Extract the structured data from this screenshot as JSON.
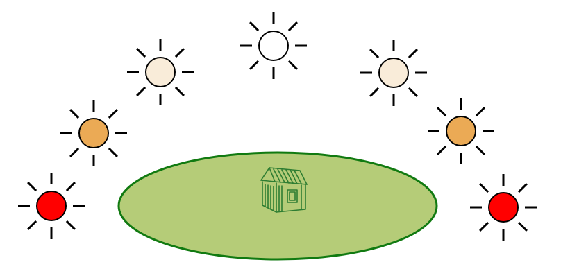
{
  "scene": {
    "ground_icon": "ellipse-ground",
    "house_icon": "house-icon",
    "sun_icon": "sun-icon",
    "colors": {
      "ground_fill": "#b5cc78",
      "ground_stroke": "#117a11",
      "house_stroke": "#2e7d32",
      "ray": "#000000",
      "sun_outline": "#000000"
    },
    "suns": [
      {
        "id": "sun-left-1",
        "color": "#ff0000"
      },
      {
        "id": "sun-left-2",
        "color": "#ebaa55"
      },
      {
        "id": "sun-left-3",
        "color": "#f9ecd9"
      },
      {
        "id": "sun-top",
        "color": "#ffffff"
      },
      {
        "id": "sun-right-3",
        "color": "#f9ecd9"
      },
      {
        "id": "sun-right-2",
        "color": "#ebaa55"
      },
      {
        "id": "sun-right-1",
        "color": "#ff0000"
      }
    ]
  }
}
